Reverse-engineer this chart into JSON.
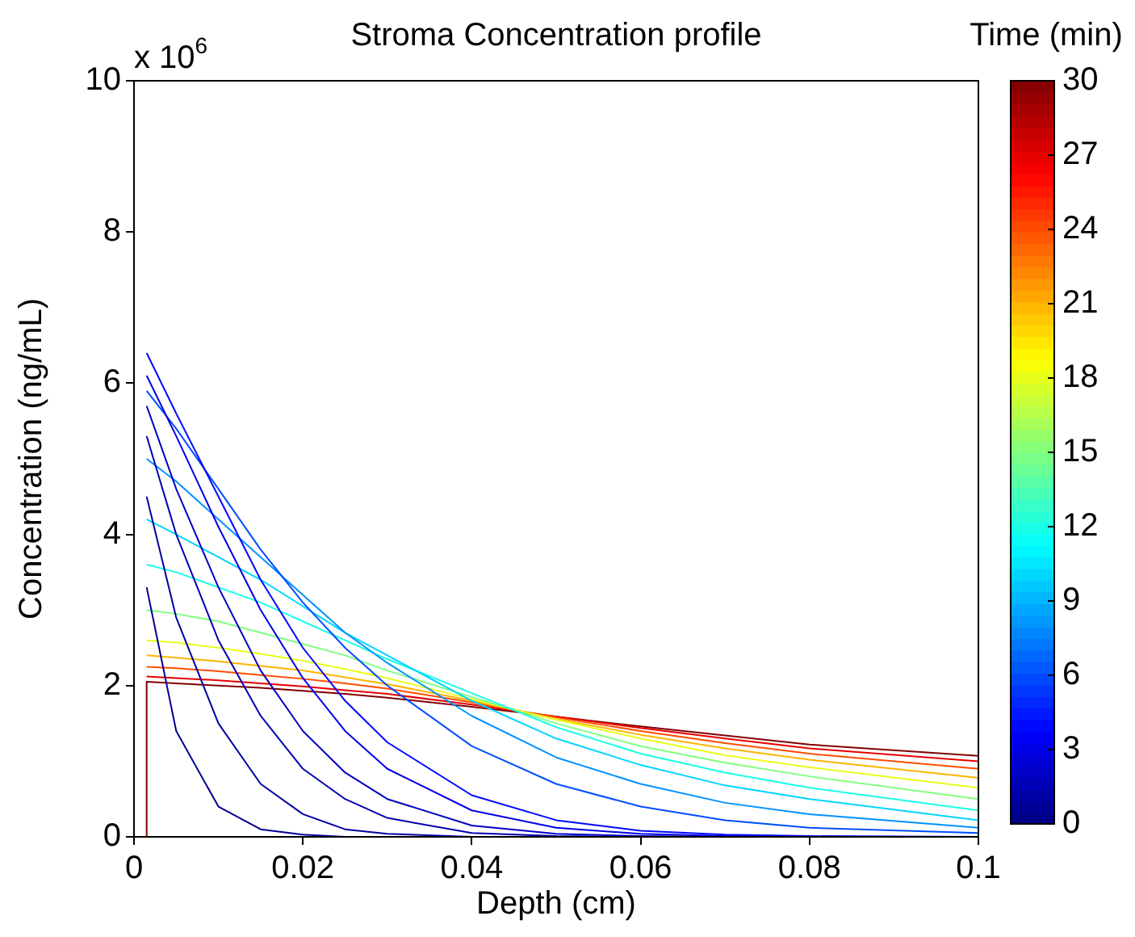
{
  "chart_data": {
    "type": "line",
    "title": "Stroma Concentration profile",
    "xlabel": "Depth (cm)",
    "ylabel": "Concentration (ng/mL)",
    "clabel": "Time (min)",
    "annotations": [
      "x 10$^{6}$"
    ],
    "x": [
      0.0015,
      0.005,
      0.01,
      0.015,
      0.02,
      0.025,
      0.03,
      0.04,
      0.05,
      0.06,
      0.07,
      0.08,
      0.1
    ],
    "series": [
      {
        "color": "#000091",
        "values": [
          3.3,
          1.4,
          0.4,
          0.1,
          0.03,
          0,
          null,
          null,
          null,
          null,
          null,
          null,
          null
        ]
      },
      {
        "color": "#0000a2",
        "values": [
          4.5,
          2.9,
          1.5,
          0.7,
          0.3,
          0.1,
          0.04,
          0,
          null,
          null,
          null,
          null,
          null
        ]
      },
      {
        "color": "#0000b3",
        "values": [
          5.3,
          4.0,
          2.6,
          1.6,
          0.9,
          0.5,
          0.25,
          0.05,
          0.01,
          0,
          null,
          null,
          null
        ]
      },
      {
        "color": "#0000c4",
        "values": [
          5.7,
          4.6,
          3.3,
          2.2,
          1.4,
          0.85,
          0.5,
          0.15,
          0.04,
          0.01,
          0,
          null,
          null
        ]
      },
      {
        "color": "#0000e6",
        "values": [
          6.1,
          5.3,
          4.1,
          3.0,
          2.1,
          1.4,
          0.9,
          0.35,
          0.12,
          0.04,
          0.01,
          0,
          null
        ]
      },
      {
        "color": "#0008ff",
        "values": [
          6.4,
          5.6,
          4.5,
          3.4,
          2.5,
          1.8,
          1.25,
          0.55,
          0.22,
          0.08,
          0.03,
          0.01,
          0
        ]
      },
      {
        "color": "#004dff",
        "values": [
          5.9,
          5.4,
          4.6,
          3.8,
          3.1,
          2.5,
          2.0,
          1.2,
          0.7,
          0.4,
          0.22,
          0.12,
          0.05
        ]
      },
      {
        "color": "#0091ff",
        "values": [
          5.0,
          4.7,
          4.2,
          3.7,
          3.2,
          2.7,
          2.3,
          1.6,
          1.05,
          0.7,
          0.45,
          0.3,
          0.12
        ]
      },
      {
        "color": "#00d4ff",
        "values": [
          4.2,
          4.0,
          3.7,
          3.4,
          3.05,
          2.7,
          2.4,
          1.8,
          1.3,
          0.95,
          0.68,
          0.5,
          0.22
        ]
      },
      {
        "color": "#1affe6",
        "values": [
          3.6,
          3.5,
          3.3,
          3.1,
          2.85,
          2.6,
          2.35,
          1.9,
          1.45,
          1.1,
          0.85,
          0.65,
          0.35
        ]
      },
      {
        "color": "#80ff80",
        "values": [
          3.0,
          2.95,
          2.85,
          2.7,
          2.55,
          2.4,
          2.2,
          1.85,
          1.5,
          1.2,
          0.98,
          0.8,
          0.5
        ]
      },
      {
        "color": "#e6ff1a",
        "values": [
          2.6,
          2.57,
          2.5,
          2.42,
          2.33,
          2.22,
          2.1,
          1.82,
          1.55,
          1.3,
          1.08,
          0.92,
          0.65
        ]
      },
      {
        "color": "#ffb300",
        "values": [
          2.4,
          2.37,
          2.32,
          2.26,
          2.2,
          2.11,
          2.02,
          1.8,
          1.56,
          1.35,
          1.17,
          1.02,
          0.78
        ]
      },
      {
        "color": "#ff4d00",
        "values": [
          2.25,
          2.23,
          2.19,
          2.14,
          2.09,
          2.03,
          1.96,
          1.78,
          1.58,
          1.4,
          1.24,
          1.1,
          0.9
        ]
      },
      {
        "color": "#e60000",
        "values": [
          2.12,
          2.1,
          2.07,
          2.03,
          1.99,
          1.94,
          1.89,
          1.75,
          1.59,
          1.44,
          1.3,
          1.17,
          1.0
        ]
      },
      {
        "color": "#800000",
        "x": [
          0.0015,
          0.0015,
          0.005,
          0.01,
          0.015,
          0.02,
          0.025,
          0.03,
          0.04,
          0.05,
          0.06,
          0.07,
          0.08,
          0.1
        ],
        "values": [
          0,
          2.05,
          2.03,
          2.0,
          1.97,
          1.93,
          1.89,
          1.84,
          1.72,
          1.59,
          1.46,
          1.34,
          1.22,
          1.07
        ]
      }
    ],
    "xlim": [
      0,
      0.1
    ],
    "xticks": [
      0,
      0.02,
      0.04,
      0.06,
      0.08,
      0.1
    ],
    "ylim": [
      0,
      10
    ],
    "yticks": [
      0,
      2,
      4,
      6,
      8,
      10
    ],
    "clim": [
      0,
      30
    ],
    "cticks": [
      0,
      3,
      6,
      9,
      12,
      15,
      18,
      21,
      24,
      27,
      30
    ],
    "grid": false,
    "legend": false,
    "marker": "none",
    "line_style": "solid"
  }
}
